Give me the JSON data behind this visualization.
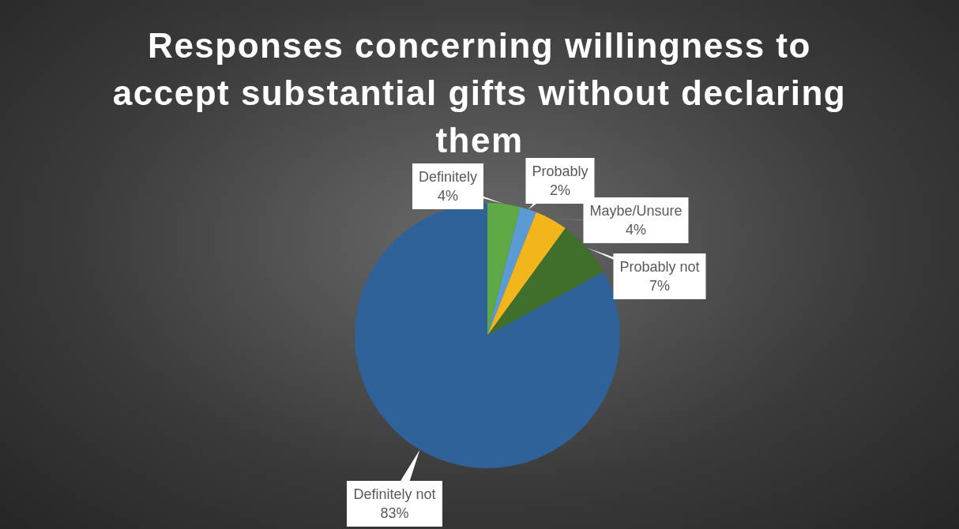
{
  "chart_data": {
    "type": "pie",
    "title": "Responses concerning willingness to accept substantial gifts without declaring them",
    "categories": [
      "Definitely",
      "Probably",
      "Maybe/Unsure",
      "Probably not",
      "Definitely not"
    ],
    "values": [
      4,
      2,
      4,
      7,
      83
    ],
    "value_labels": [
      "4%",
      "2%",
      "4%",
      "7%",
      "83%"
    ],
    "colors": [
      "#5fa846",
      "#5b9bd5",
      "#f2b51c",
      "#3f6f2a",
      "#2e6299"
    ],
    "legend": false
  }
}
